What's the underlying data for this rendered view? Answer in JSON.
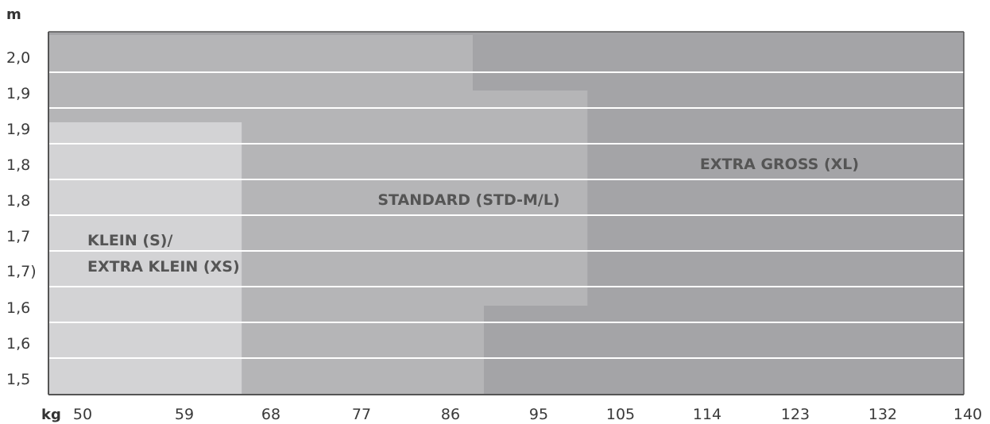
{
  "chart_data": {
    "type": "area",
    "y_unit": "m",
    "x_unit": "kg",
    "y_tick_labels": [
      "2,0",
      "1,9",
      "1,9",
      "1,8",
      "1,8",
      "1,7",
      "1,7)",
      "1,6",
      "1,6",
      "1,5"
    ],
    "x_tick_labels": [
      "50",
      "59",
      "68",
      "77",
      "86",
      "95",
      "105",
      "114",
      "123",
      "132",
      "140"
    ],
    "x_range": [
      50,
      140
    ],
    "grid": true,
    "colors": {
      "background": "#a4a4a7",
      "xl_zone": "#a4a4a7",
      "std_zone": "#b5b5b7",
      "xs_zone": "#d3d3d5",
      "grid": "#ffffff",
      "axis": "#555555",
      "label": "#555555"
    },
    "zones": [
      {
        "name": "EXTRA GROSS (XL)",
        "label_lines": [
          "EXTRA GROSS (XL)"
        ],
        "kg_from": 50,
        "kg_to": 140
      },
      {
        "name": "STANDARD (STD-M/L)",
        "label_lines": [
          "STANDARD (STD-M/L)"
        ],
        "kg_from": 50,
        "kg_to": 103
      },
      {
        "name": "KLEIN (S)/ EXTRA KLEIN (XS)",
        "label_lines": [
          "KLEIN (S)/",
          "EXTRA KLEIN (XS)"
        ],
        "kg_from": 50,
        "kg_to": 69
      }
    ]
  }
}
